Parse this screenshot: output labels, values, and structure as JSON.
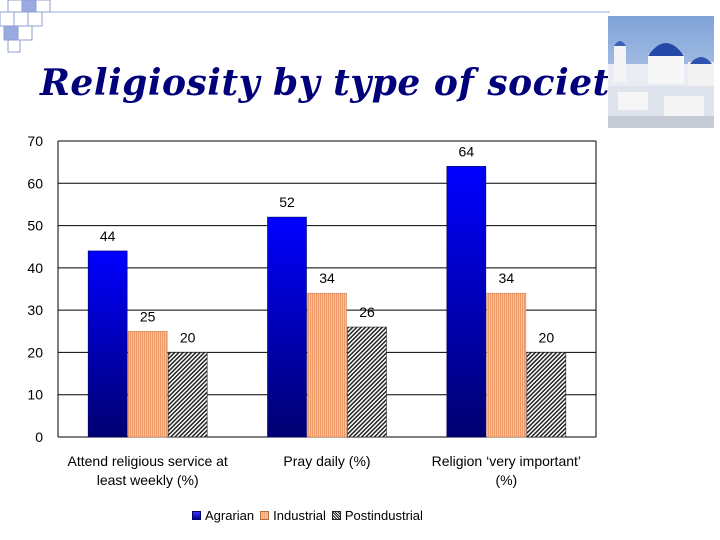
{
  "slide": {
    "title": "Religiosity by type of society"
  },
  "colors": {
    "agrarian": "#0a0aff",
    "agrarian_dark": "#00007a",
    "industrial": "#f3b08a",
    "postindustrial": "#333333",
    "title": "#00007a"
  },
  "chart_data": {
    "type": "bar",
    "categories": [
      "Attend religious service at least weekly (%)",
      "Pray daily (%)",
      "Religion ‘very important’ (%)"
    ],
    "category_lines": [
      [
        "Attend religious service at",
        "least weekly (%)"
      ],
      [
        "Pray daily (%)"
      ],
      [
        "Religion ‘very important’",
        "(%)"
      ]
    ],
    "series": [
      {
        "name": "Agrarian",
        "values": [
          44,
          52,
          64
        ]
      },
      {
        "name": "Industrial",
        "values": [
          25,
          34,
          34
        ]
      },
      {
        "name": "Postindustrial",
        "values": [
          20,
          26,
          20
        ]
      }
    ],
    "ylim": [
      0,
      70
    ],
    "yticks": [
      0,
      10,
      20,
      30,
      40,
      50,
      60,
      70
    ],
    "grid": true,
    "legend": "bottom",
    "data_labels": true
  }
}
